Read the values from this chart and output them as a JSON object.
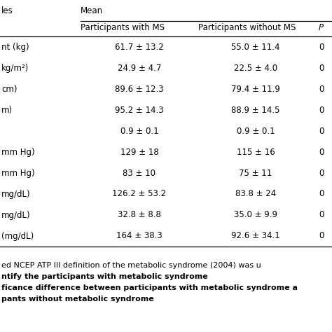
{
  "col_headers_row1": [
    "les",
    "Mean",
    "",
    "P"
  ],
  "col_headers_row2": [
    "",
    "Participants with MS",
    "Participants without MS",
    "P"
  ],
  "rows": [
    [
      "nt (kg)",
      "61.7 ± 13.2",
      "55.0 ± 11.4",
      "0"
    ],
    [
      "kg/m²)",
      "24.9 ± 4.7",
      "22.5 ± 4.0",
      "0"
    ],
    [
      "cm)",
      "89.6 ± 12.3",
      "79.4 ± 11.9",
      "0"
    ],
    [
      "m)",
      "95.2 ± 14.3",
      "88.9 ± 14.5",
      "0"
    ],
    [
      "",
      "0.9 ± 0.1",
      "0.9 ± 0.1",
      "0"
    ],
    [
      "mm Hg)",
      "129 ± 18",
      "115 ± 16",
      "0"
    ],
    [
      "mm Hg)",
      "83 ± 10",
      "75 ± 11",
      "0"
    ],
    [
      "mg/dL)",
      "126.2 ± 53.2",
      "83.8 ± 24",
      "0"
    ],
    [
      "mg/dL)",
      "32.8 ± 8.8",
      "35.0 ± 9.9",
      "0"
    ],
    [
      "(mg/dL)",
      "164 ± 38.3",
      "92.6 ± 34.1",
      "0"
    ]
  ],
  "footnotes": [
    [
      "ed NCEP ATP III definition of the metabolic syndrome (2004) was u",
      false
    ],
    [
      "ntify the participants with metabolic syndrome",
      true
    ],
    [
      "ficance difference between participants with metabolic syndrome a",
      true
    ],
    [
      "pants without metabolic syndrome",
      true
    ]
  ],
  "background_color": "#ffffff",
  "line_color": "#000000",
  "text_color": "#000000",
  "fontsize": 8.5,
  "footnote_fontsize": 8.0
}
